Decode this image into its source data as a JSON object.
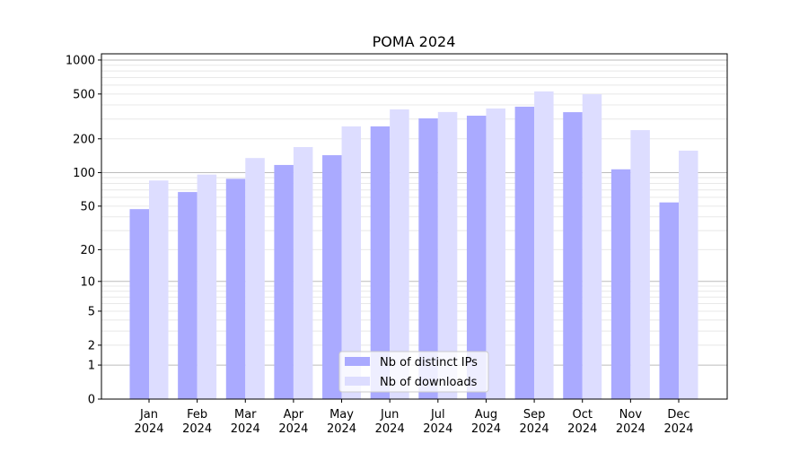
{
  "chart_data": {
    "type": "bar",
    "title": "POMA 2024",
    "xlabel": "",
    "ylabel": "",
    "yscale": "symlog (log10(y+1))",
    "ylim": [
      0,
      1150
    ],
    "yticks": [
      0,
      1,
      2,
      5,
      10,
      20,
      50,
      100,
      200,
      500,
      1000
    ],
    "ytick_labels": [
      "0",
      "1",
      "2",
      "5",
      "10",
      "20",
      "50",
      "100",
      "200",
      "500",
      "1000"
    ],
    "categories": [
      [
        "Jan",
        "2024"
      ],
      [
        "Feb",
        "2024"
      ],
      [
        "Mar",
        "2024"
      ],
      [
        "Apr",
        "2024"
      ],
      [
        "May",
        "2024"
      ],
      [
        "Jun",
        "2024"
      ],
      [
        "Jul",
        "2024"
      ],
      [
        "Aug",
        "2024"
      ],
      [
        "Sep",
        "2024"
      ],
      [
        "Oct",
        "2024"
      ],
      [
        "Nov",
        "2024"
      ],
      [
        "Dec",
        "2024"
      ]
    ],
    "series": [
      {
        "name": "Nb of distinct IPs",
        "color": "#aaaaff",
        "values": [
          47,
          67,
          88,
          117,
          143,
          258,
          304,
          321,
          386,
          345,
          107,
          54
        ]
      },
      {
        "name": "Nb of downloads",
        "color": "#ddddff",
        "values": [
          85,
          96,
          135,
          169,
          258,
          365,
          346,
          372,
          527,
          498,
          239,
          157
        ]
      }
    ],
    "grid": true,
    "legend_position": "bottom-center"
  }
}
